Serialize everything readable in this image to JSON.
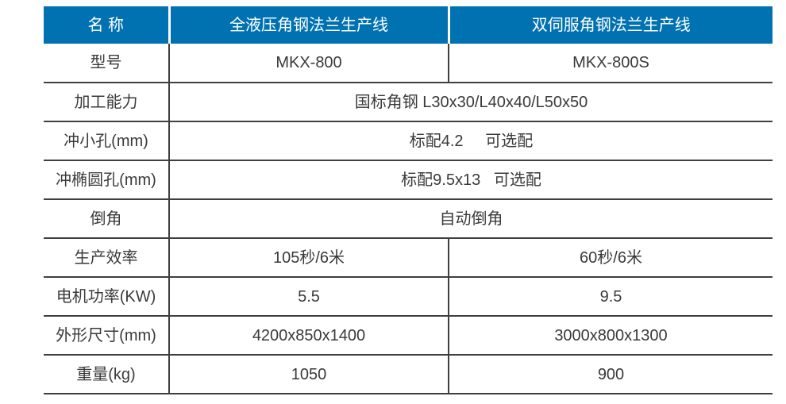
{
  "colors": {
    "header_bg": "#0072b1",
    "header_text": "#ffffff",
    "border": "#3f3f3f",
    "text": "#3a3a3a"
  },
  "table": {
    "columns": {
      "name": "名 称",
      "hydraulic": "全液压角钢法兰生产线",
      "servo": "双伺服角钢法兰生产线"
    },
    "rows": {
      "model": {
        "label": "型号",
        "v1": "MKX-800",
        "v2": "MKX-800S"
      },
      "capacity": {
        "label": "加工能力",
        "merged": "国标角钢 L30x30/L40x40/L50x50"
      },
      "small_hole": {
        "label": "冲小孔(mm)",
        "merged": "标配4.2     可选配"
      },
      "oval_hole": {
        "label": "冲椭圆孔(mm)",
        "merged": "标配9.5x13   可选配"
      },
      "chamfer": {
        "label": "倒角",
        "merged": "自动倒角"
      },
      "efficiency": {
        "label": "生产效率",
        "v1": "105秒/6米",
        "v2": "60秒/6米"
      },
      "motor_power": {
        "label": "电机功率(KW)",
        "v1": "5.5",
        "v2": "9.5"
      },
      "dimensions": {
        "label": "外形尺寸(mm)",
        "v1": "4200x850x1400",
        "v2": "3000x800x1300"
      },
      "weight": {
        "label": "重量(kg)",
        "v1": "1050",
        "v2": "900"
      }
    }
  }
}
